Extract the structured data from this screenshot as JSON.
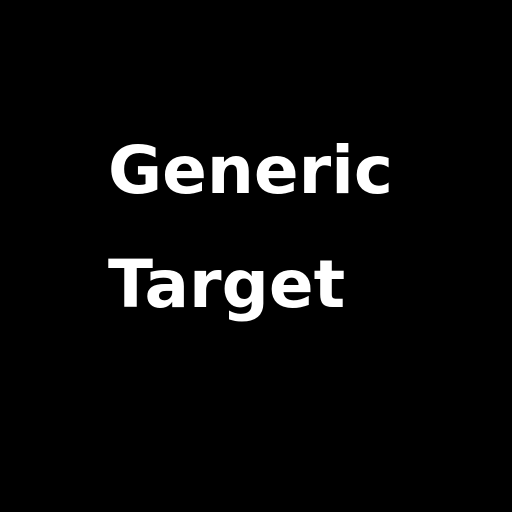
{
  "colors": {
    "background": "#000000",
    "text": "#ffffff"
  },
  "text": {
    "line1": "Generic",
    "line2": "Target"
  }
}
